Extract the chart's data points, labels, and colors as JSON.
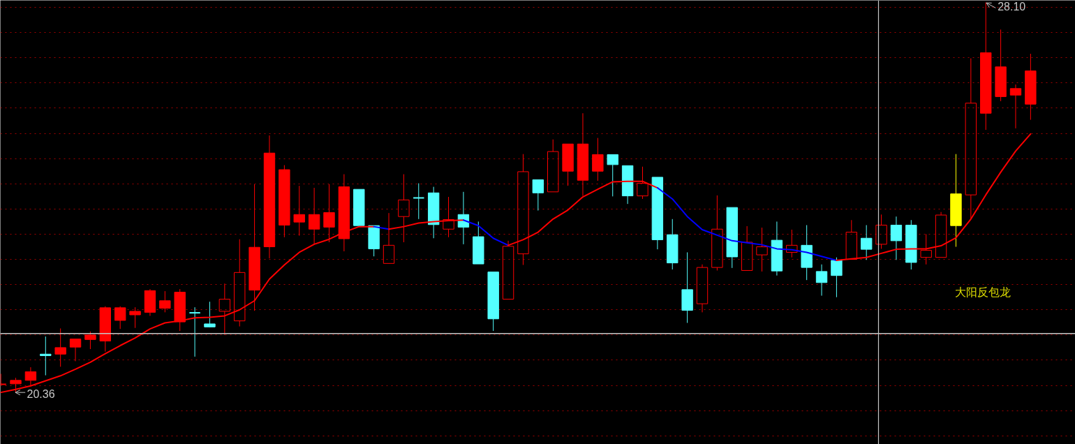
{
  "chart_data": {
    "type": "candlestick",
    "categories": [
      null,
      null,
      null,
      null,
      null,
      null,
      null,
      null,
      null,
      null,
      null,
      null,
      null,
      null,
      null,
      null,
      null,
      null,
      null,
      null,
      null,
      null,
      null,
      null,
      null,
      null,
      null,
      null,
      null,
      null,
      null,
      null,
      null,
      null,
      null,
      null,
      null,
      null,
      null,
      null,
      null,
      null,
      null,
      null,
      null,
      null,
      null,
      null,
      null,
      null,
      null,
      null,
      null,
      null,
      null,
      null,
      null,
      null,
      null,
      null,
      null,
      null,
      null,
      null,
      null,
      null,
      null,
      null,
      null,
      null
    ],
    "ohlc": [
      [
        20.52,
        20.73,
        20.52,
        20.52
      ],
      [
        20.6,
        20.65,
        20.36,
        20.53
      ],
      [
        20.77,
        20.86,
        20.48,
        20.6
      ],
      [
        21.12,
        21.47,
        20.7,
        21.09
      ],
      [
        21.25,
        21.63,
        20.87,
        21.12
      ],
      [
        21.42,
        21.42,
        20.98,
        21.26
      ],
      [
        21.5,
        21.57,
        21.22,
        21.41
      ],
      [
        22.04,
        22.07,
        21.17,
        21.38
      ],
      [
        22.04,
        22.07,
        21.62,
        21.79
      ],
      [
        21.97,
        22.05,
        21.64,
        21.9
      ],
      [
        22.38,
        22.41,
        21.88,
        21.95
      ],
      [
        22.18,
        22.37,
        21.95,
        22.03
      ],
      [
        22.35,
        22.41,
        21.58,
        21.76
      ],
      [
        21.94,
        22.05,
        21.07,
        21.94
      ],
      [
        21.72,
        22.16,
        21.65,
        21.66
      ],
      [
        21.97,
        22.52,
        21.5,
        22.21
      ],
      [
        21.78,
        23.4,
        21.67,
        22.74
      ],
      [
        23.24,
        24.49,
        21.98,
        22.39
      ],
      [
        25.11,
        25.46,
        23.02,
        23.25
      ],
      [
        24.78,
        24.87,
        23.44,
        23.68
      ],
      [
        23.89,
        24.46,
        23.47,
        23.74
      ],
      [
        23.89,
        24.42,
        23.31,
        23.6
      ],
      [
        23.93,
        24.49,
        23.34,
        23.64
      ],
      [
        24.44,
        24.69,
        23.16,
        23.41
      ],
      [
        24.39,
        24.39,
        23.67,
        23.67
      ],
      [
        23.67,
        23.67,
        23.06,
        23.21
      ],
      [
        22.92,
        23.92,
        22.92,
        23.28
      ],
      [
        23.85,
        24.69,
        23.34,
        24.18
      ],
      [
        24.22,
        24.51,
        23.8,
        24.22
      ],
      [
        24.32,
        24.44,
        23.42,
        23.69
      ],
      [
        23.6,
        24.24,
        23.44,
        23.79
      ],
      [
        23.89,
        24.34,
        23.3,
        23.64
      ],
      [
        23.45,
        23.75,
        22.91,
        22.91
      ],
      [
        22.75,
        22.75,
        21.58,
        21.82
      ],
      [
        22.21,
        23.37,
        22.21,
        23.26
      ],
      [
        23.11,
        25.09,
        22.89,
        24.74
      ],
      [
        24.58,
        24.58,
        23.97,
        24.32
      ],
      [
        24.34,
        25.38,
        24.34,
        25.14
      ],
      [
        25.29,
        25.29,
        24.46,
        24.75
      ],
      [
        25.29,
        25.9,
        24.26,
        24.57
      ],
      [
        25.08,
        25.41,
        24.56,
        24.75
      ],
      [
        25.08,
        25.08,
        24.25,
        24.88
      ],
      [
        24.86,
        24.86,
        24.1,
        24.26
      ],
      [
        24.26,
        24.84,
        24.2,
        24.51
      ],
      [
        24.63,
        24.63,
        23.2,
        23.39
      ],
      [
        23.49,
        23.8,
        22.8,
        22.93
      ],
      [
        22.4,
        23.14,
        21.74,
        21.99
      ],
      [
        22.12,
        22.9,
        21.95,
        22.84
      ],
      [
        22.84,
        24.27,
        22.78,
        23.6
      ],
      [
        24.03,
        24.03,
        22.83,
        23.05
      ],
      [
        22.78,
        23.66,
        22.78,
        23.34
      ],
      [
        23.09,
        23.63,
        22.76,
        23.25
      ],
      [
        23.38,
        23.75,
        22.68,
        22.77
      ],
      [
        23.14,
        23.59,
        23.04,
        23.28
      ],
      [
        23.28,
        23.68,
        22.59,
        22.84
      ],
      [
        22.76,
        22.9,
        22.28,
        22.54
      ],
      [
        22.98,
        23.04,
        22.25,
        22.68
      ],
      [
        23.0,
        23.78,
        23.0,
        23.54
      ],
      [
        23.42,
        23.68,
        22.99,
        23.2
      ],
      [
        23.3,
        23.89,
        23.21,
        23.68
      ],
      [
        23.68,
        23.85,
        22.99,
        23.37
      ],
      [
        23.68,
        23.78,
        22.8,
        22.94
      ],
      [
        23.04,
        23.5,
        22.9,
        23.18
      ],
      [
        23.04,
        23.94,
        23.04,
        23.88
      ],
      [
        24.3,
        25.09,
        23.25,
        23.67
      ],
      [
        24.28,
        26.99,
        23.8,
        26.1
      ],
      [
        27.1,
        28.1,
        25.57,
        25.9
      ],
      [
        26.82,
        27.56,
        26.14,
        26.23
      ],
      [
        26.39,
        26.47,
        25.6,
        26.26
      ],
      [
        26.74,
        27.08,
        25.77,
        26.08
      ]
    ],
    "colors": [
      "#ff0000",
      "#ff0000",
      "#ff0000",
      "#54ffff",
      "#ff0000",
      "#ff0000",
      "#ff0000",
      "#ff0000",
      "#ff0000",
      "#ff0000",
      "#ff0000",
      "#ff0000",
      "#ff0000",
      "#54ffff",
      "#54ffff",
      "#ff0000",
      "#ff0000",
      "#ff0000",
      "#ff0000",
      "#ff0000",
      "#ff0000",
      "#ff0000",
      "#ff0000",
      "#ff0000",
      "#54ffff",
      "#54ffff",
      "#ff0000",
      "#ff0000",
      "#54ffff",
      "#54ffff",
      "#ff0000",
      "#54ffff",
      "#54ffff",
      "#54ffff",
      "#ff0000",
      "#ff0000",
      "#54ffff",
      "#ff0000",
      "#ff0000",
      "#ff0000",
      "#ff0000",
      "#54ffff",
      "#54ffff",
      "#ff0000",
      "#54ffff",
      "#54ffff",
      "#54ffff",
      "#ff0000",
      "#ff0000",
      "#54ffff",
      "#ff0000",
      "#ff0000",
      "#54ffff",
      "#ff0000",
      "#54ffff",
      "#54ffff",
      "#54ffff",
      "#ff0000",
      "#54ffff",
      "#ff0000",
      "#54ffff",
      "#54ffff",
      "#ff0000",
      "#ff0000",
      "#ffff00",
      "#ff0000",
      "#ff0000",
      "#ff0000",
      "#ff0000",
      "#ff0000"
    ],
    "series": [
      {
        "type": "line",
        "color": "#ff0000",
        "values": [
          20.36,
          20.42,
          20.49,
          20.59,
          20.69,
          20.82,
          20.96,
          21.13,
          21.29,
          21.44,
          21.62,
          21.74,
          21.78,
          21.84,
          21.85,
          21.88,
          22.0,
          22.18,
          22.61,
          22.89,
          23.14,
          23.3,
          23.4,
          23.54,
          23.65,
          23.65,
          null,
          null,
          null,
          null,
          null,
          null,
          null,
          null,
          null,
          null,
          null,
          null,
          null,
          null,
          null,
          null,
          null,
          null,
          null,
          null,
          null,
          null,
          null,
          null,
          null,
          null,
          null,
          null,
          null,
          null,
          null,
          null,
          null,
          null,
          null,
          null,
          null,
          null,
          null,
          null,
          null,
          null,
          null,
          null
        ]
      },
      {
        "type": "line",
        "color": "#0000ff",
        "values": [
          null,
          null,
          null,
          null,
          null,
          null,
          null,
          null,
          null,
          null,
          null,
          null,
          null,
          null,
          null,
          null,
          null,
          null,
          null,
          null,
          null,
          null,
          null,
          null,
          null,
          23.65,
          23.6,
          null,
          null,
          null,
          null,
          null,
          null,
          null,
          null,
          null,
          null,
          null,
          null,
          null,
          null,
          null,
          null,
          null,
          null,
          null,
          null,
          null,
          null,
          null,
          null,
          null,
          null,
          null,
          null,
          null,
          null,
          null,
          null,
          null,
          null,
          null,
          null,
          null,
          null,
          null,
          null,
          null,
          null,
          null
        ]
      },
      {
        "type": "line",
        "color": "#ff0000",
        "values": [
          null,
          null,
          null,
          null,
          null,
          null,
          null,
          null,
          null,
          null,
          null,
          null,
          null,
          null,
          null,
          null,
          null,
          null,
          null,
          null,
          null,
          null,
          null,
          null,
          null,
          null,
          23.6,
          23.65,
          23.72,
          23.75,
          23.77,
          23.78,
          null,
          null,
          null,
          null,
          null,
          null,
          null,
          null,
          null,
          null,
          null,
          null,
          null,
          null,
          null,
          null,
          null,
          null,
          null,
          null,
          null,
          null,
          null,
          null,
          null,
          null,
          null,
          null,
          null,
          null,
          null,
          null,
          null,
          null,
          null,
          null,
          null,
          null
        ]
      },
      {
        "type": "line",
        "color": "#0000ff",
        "values": [
          null,
          null,
          null,
          null,
          null,
          null,
          null,
          null,
          null,
          null,
          null,
          null,
          null,
          null,
          null,
          null,
          null,
          null,
          null,
          null,
          null,
          null,
          null,
          null,
          null,
          null,
          null,
          null,
          null,
          null,
          null,
          23.78,
          23.67,
          23.42,
          23.28,
          null,
          null,
          null,
          null,
          null,
          null,
          null,
          null,
          null,
          null,
          null,
          null,
          null,
          null,
          null,
          null,
          null,
          null,
          null,
          null,
          null,
          null,
          null,
          null,
          null,
          null,
          null,
          null,
          null,
          null,
          null,
          null,
          null,
          null,
          null
        ]
      },
      {
        "type": "line",
        "color": "#ff0000",
        "values": [
          null,
          null,
          null,
          null,
          null,
          null,
          null,
          null,
          null,
          null,
          null,
          null,
          null,
          null,
          null,
          null,
          null,
          null,
          null,
          null,
          null,
          null,
          null,
          null,
          null,
          null,
          null,
          null,
          null,
          null,
          null,
          null,
          null,
          null,
          23.28,
          23.39,
          23.54,
          23.8,
          23.98,
          24.24,
          24.39,
          24.54,
          24.55,
          24.55,
          24.42,
          null,
          null,
          null,
          null,
          null,
          null,
          null,
          null,
          null,
          null,
          null,
          null,
          null,
          null,
          null,
          null,
          null,
          null,
          null,
          null,
          null,
          null,
          null,
          null,
          null
        ]
      },
      {
        "type": "line",
        "color": "#0000ff",
        "values": [
          null,
          null,
          null,
          null,
          null,
          null,
          null,
          null,
          null,
          null,
          null,
          null,
          null,
          null,
          null,
          null,
          null,
          null,
          null,
          null,
          null,
          null,
          null,
          null,
          null,
          null,
          null,
          null,
          null,
          null,
          null,
          null,
          null,
          null,
          null,
          null,
          null,
          null,
          null,
          null,
          null,
          null,
          null,
          null,
          24.42,
          24.2,
          23.85,
          23.59,
          23.48,
          23.37,
          23.33,
          23.29,
          23.21,
          23.19,
          23.14,
          23.06,
          22.98,
          null,
          null,
          null,
          null,
          null,
          null,
          null,
          null,
          null,
          null,
          null,
          null,
          null
        ]
      },
      {
        "type": "line",
        "color": "#ff0000",
        "values": [
          null,
          null,
          null,
          null,
          null,
          null,
          null,
          null,
          null,
          null,
          null,
          null,
          null,
          null,
          null,
          null,
          null,
          null,
          null,
          null,
          null,
          null,
          null,
          null,
          null,
          null,
          null,
          null,
          null,
          null,
          null,
          null,
          null,
          null,
          null,
          null,
          null,
          null,
          null,
          null,
          null,
          null,
          null,
          null,
          null,
          null,
          null,
          null,
          null,
          null,
          null,
          null,
          null,
          null,
          null,
          null,
          22.98,
          23.01,
          23.04,
          23.12,
          23.2,
          23.21,
          23.21,
          23.27,
          23.43,
          23.8,
          24.28,
          24.73,
          25.15,
          25.49
        ]
      }
    ],
    "ylim": [
      19.33,
      28.14
    ],
    "yticks": [
      {
        "value": 19.5,
        "label": null
      },
      {
        "value": 20.0,
        "label": null
      },
      {
        "value": 20.5,
        "label": null
      },
      {
        "value": 21.0,
        "label": null
      },
      {
        "value": 21.5,
        "label": null
      },
      {
        "value": 22.0,
        "label": null
      },
      {
        "value": 22.5,
        "label": null
      },
      {
        "value": 23.0,
        "label": null
      },
      {
        "value": 23.5,
        "label": null
      },
      {
        "value": 24.0,
        "label": null
      },
      {
        "value": 24.5,
        "label": null
      },
      {
        "value": 25.0,
        "label": null
      },
      {
        "value": 25.5,
        "label": null
      },
      {
        "value": 26.0,
        "label": null
      },
      {
        "value": 26.5,
        "label": null
      },
      {
        "value": 27.0,
        "label": null
      },
      {
        "value": 27.5,
        "label": null
      },
      {
        "value": 28.0,
        "label": null
      }
    ],
    "grid": "y",
    "tick_labels": false,
    "ref_lines": [
      {
        "axis": "y",
        "value": 21.53,
        "color": "#c8c8c8"
      }
    ],
    "annotations": [
      "28.10",
      "20.36",
      "大阳反包龙"
    ]
  }
}
